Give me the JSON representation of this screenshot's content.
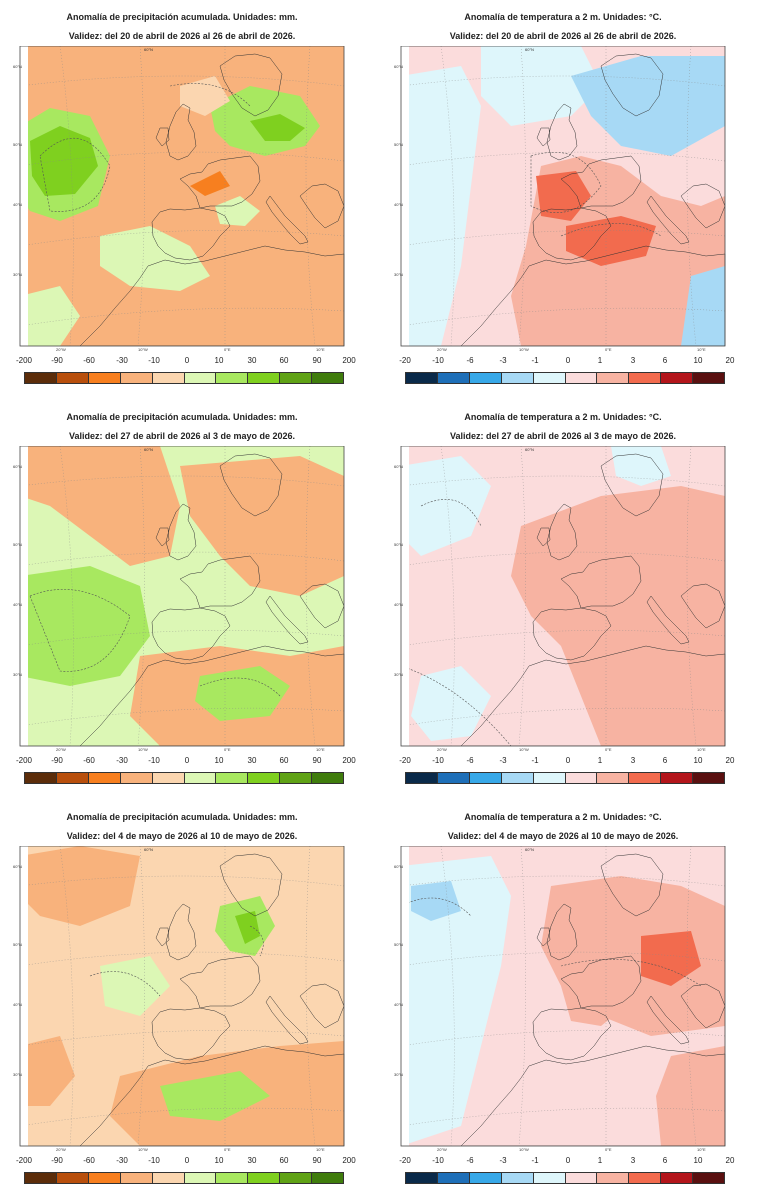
{
  "panels": [
    {
      "id": "p1",
      "var": "precip",
      "title": "Anomalía de precipitación acumulada. Unidades: mm.",
      "validity": "Validez: del 20 de abril de 2026 al 26 de abril de 2026."
    },
    {
      "id": "p2",
      "var": "temp",
      "title": "Anomalía de temperatura a 2 m. Unidades: °C.",
      "validity": "Validez: del 20 de abril de 2026 al 26 de abril de 2026."
    },
    {
      "id": "p3",
      "var": "precip",
      "title": "Anomalía de precipitación acumulada. Unidades: mm.",
      "validity": "Validez: del 27 de abril de 2026 al 3 de mayo de 2026."
    },
    {
      "id": "p4",
      "var": "temp",
      "title": "Anomalía de temperatura a 2 m. Unidades: °C.",
      "validity": "Validez: del 27 de abril de 2026 al 3 de mayo de 2026."
    },
    {
      "id": "p5",
      "var": "precip",
      "title": "Anomalía de precipitación acumulada. Unidades: mm.",
      "validity": "Validez: del 4 de mayo de 2026 al 10 de mayo de 2026."
    },
    {
      "id": "p6",
      "var": "temp",
      "title": "Anomalía de temperatura a 2 m. Unidades: °C.",
      "validity": "Validez: del 4 de mayo de 2026 al 10 de mayo de 2026."
    }
  ],
  "colorbars": {
    "precip": {
      "labels": [
        "-200",
        "-90",
        "-60",
        "-30",
        "-10",
        "0",
        "10",
        "30",
        "60",
        "90",
        "200"
      ],
      "colors": [
        "#5c2d0a",
        "#b84f0c",
        "#f77f1f",
        "#f8b27c",
        "#fbd6b0",
        "#dcf7b5",
        "#a8e860",
        "#7fd01f",
        "#5fa215",
        "#3f7c0c"
      ]
    },
    "temp": {
      "labels": [
        "-20",
        "-10",
        "-6",
        "-3",
        "-1",
        "0",
        "1",
        "3",
        "6",
        "10",
        "20"
      ],
      "colors": [
        "#0a2a4a",
        "#1e6fb8",
        "#37a8e8",
        "#a7d9f5",
        "#def6fb",
        "#fbdcdc",
        "#f7b3a2",
        "#f26b4e",
        "#b3151b",
        "#5a1010"
      ]
    }
  },
  "map_labels": {
    "lat": [
      "60°N",
      "50°N",
      "40°N",
      "30°N"
    ],
    "lon": [
      "20°W",
      "10°W",
      "0°E",
      "10°E"
    ]
  }
}
